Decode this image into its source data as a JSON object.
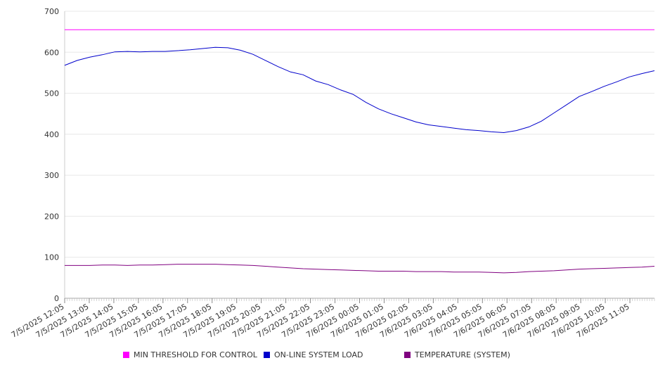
{
  "chart_data": {
    "type": "line",
    "title": "",
    "xlabel": "",
    "ylabel": "",
    "ylim": [
      0,
      700
    ],
    "y_ticks": [
      "0",
      "100",
      "200",
      "300",
      "400",
      "500",
      "600",
      "700"
    ],
    "grid": "horizontal",
    "legend_position": "bottom",
    "x_tick_labels": [
      "7/5/2025 12:05",
      "7/5/2025 13:05",
      "7/5/2025 14:05",
      "7/5/2025 15:05",
      "7/5/2025 16:05",
      "7/5/2025 17:05",
      "7/5/2025 18:05",
      "7/5/2025 19:05",
      "7/5/2025 20:05",
      "7/5/2025 21:05",
      "7/5/2025 22:05",
      "7/5/2025 23:05",
      "7/6/2025 00:05",
      "7/6/2025 01:05",
      "7/6/2025 02:05",
      "7/6/2025 03:05",
      "7/6/2025 04:05",
      "7/6/2025 05:05",
      "7/6/2025 06:05",
      "7/6/2025 07:05",
      "7/6/2025 08:05",
      "7/6/2025 09:05",
      "7/6/2025 10:05",
      "7/6/2025 11:05"
    ],
    "x": [
      "7/5/2025 12:05",
      "7/5/2025 12:35",
      "7/5/2025 13:05",
      "7/5/2025 13:35",
      "7/5/2025 14:05",
      "7/5/2025 14:35",
      "7/5/2025 15:05",
      "7/5/2025 15:35",
      "7/5/2025 16:05",
      "7/5/2025 16:35",
      "7/5/2025 17:05",
      "7/5/2025 17:35",
      "7/5/2025 18:05",
      "7/5/2025 18:35",
      "7/5/2025 19:05",
      "7/5/2025 19:35",
      "7/5/2025 20:05",
      "7/5/2025 20:35",
      "7/5/2025 21:05",
      "7/5/2025 21:35",
      "7/5/2025 22:05",
      "7/5/2025 22:35",
      "7/5/2025 23:05",
      "7/5/2025 23:35",
      "7/6/2025 00:05",
      "7/6/2025 00:35",
      "7/6/2025 01:05",
      "7/6/2025 01:35",
      "7/6/2025 02:05",
      "7/6/2025 02:35",
      "7/6/2025 03:05",
      "7/6/2025 03:35",
      "7/6/2025 04:05",
      "7/6/2025 04:35",
      "7/6/2025 05:05",
      "7/6/2025 05:35",
      "7/6/2025 06:05",
      "7/6/2025 06:35",
      "7/6/2025 07:05",
      "7/6/2025 07:35",
      "7/6/2025 08:05",
      "7/6/2025 08:35",
      "7/6/2025 09:05",
      "7/6/2025 09:35",
      "7/6/2025 10:05",
      "7/6/2025 10:35",
      "7/6/2025 11:05",
      "7/6/2025 11:35"
    ],
    "series": [
      {
        "name": "MIN THRESHOLD FOR CONTROL",
        "color": "#ff00ff",
        "values": [
          655,
          655,
          655,
          655,
          655,
          655,
          655,
          655,
          655,
          655,
          655,
          655,
          655,
          655,
          655,
          655,
          655,
          655,
          655,
          655,
          655,
          655,
          655,
          655,
          655,
          655,
          655,
          655,
          655,
          655,
          655,
          655,
          655,
          655,
          655,
          655,
          655,
          655,
          655,
          655,
          655,
          655,
          655,
          655,
          655,
          655,
          655,
          655
        ]
      },
      {
        "name": "ON-LINE SYSTEM LOAD",
        "color": "#0000cc",
        "values": [
          568,
          580,
          588,
          594,
          601,
          602,
          601,
          602,
          602,
          604,
          606,
          609,
          612,
          611,
          605,
          595,
          580,
          565,
          552,
          545,
          530,
          521,
          508,
          497,
          478,
          462,
          450,
          440,
          430,
          423,
          419,
          415,
          411,
          409,
          406,
          404,
          409,
          418,
          432,
          452,
          472,
          492,
          504,
          517,
          528,
          540,
          548,
          555
        ]
      },
      {
        "name": "TEMPERATURE (SYSTEM)",
        "color": "#800080",
        "values": [
          80,
          80,
          80,
          81,
          81,
          80,
          81,
          81,
          82,
          83,
          83,
          83,
          83,
          82,
          81,
          80,
          78,
          76,
          74,
          72,
          71,
          70,
          69,
          68,
          67,
          66,
          66,
          66,
          65,
          65,
          65,
          64,
          64,
          64,
          63,
          62,
          63,
          65,
          66,
          67,
          69,
          71,
          72,
          73,
          74,
          75,
          76,
          78
        ]
      }
    ]
  }
}
